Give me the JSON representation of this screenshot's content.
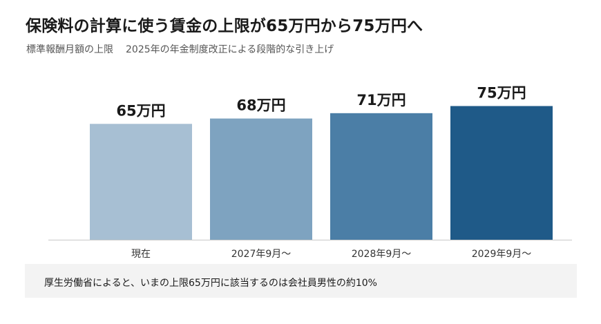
{
  "title": "保険料の計算に使う賃金の上限が65万円から75万円へ",
  "subtitle": {
    "part1": "標準報酬月額の上限",
    "part2": "2025年の年金制度改正による段階的な引き上げ"
  },
  "note": "厚生労働省によると、いまの上限65万円に該当するのは会社員男性の約10%",
  "chart_data": {
    "type": "bar",
    "title": "保険料の計算に使う賃金の上限が65万円から75万円へ",
    "subtitle": "標準報酬月額の上限　2025年の年金制度改正による段階的な引き上げ",
    "categories": [
      "現在",
      "2027年9月〜",
      "2028年9月〜",
      "2029年9月〜"
    ],
    "values": [
      65,
      68,
      71,
      75
    ],
    "data_labels": [
      "65万円",
      "68万円",
      "71万円",
      "75万円"
    ],
    "unit": "万円",
    "colors": [
      "#a7bfd3",
      "#7ea3c0",
      "#4b7ea6",
      "#1f5a88"
    ],
    "xlabel": "",
    "ylabel": "",
    "grid": false,
    "legend": "none"
  }
}
